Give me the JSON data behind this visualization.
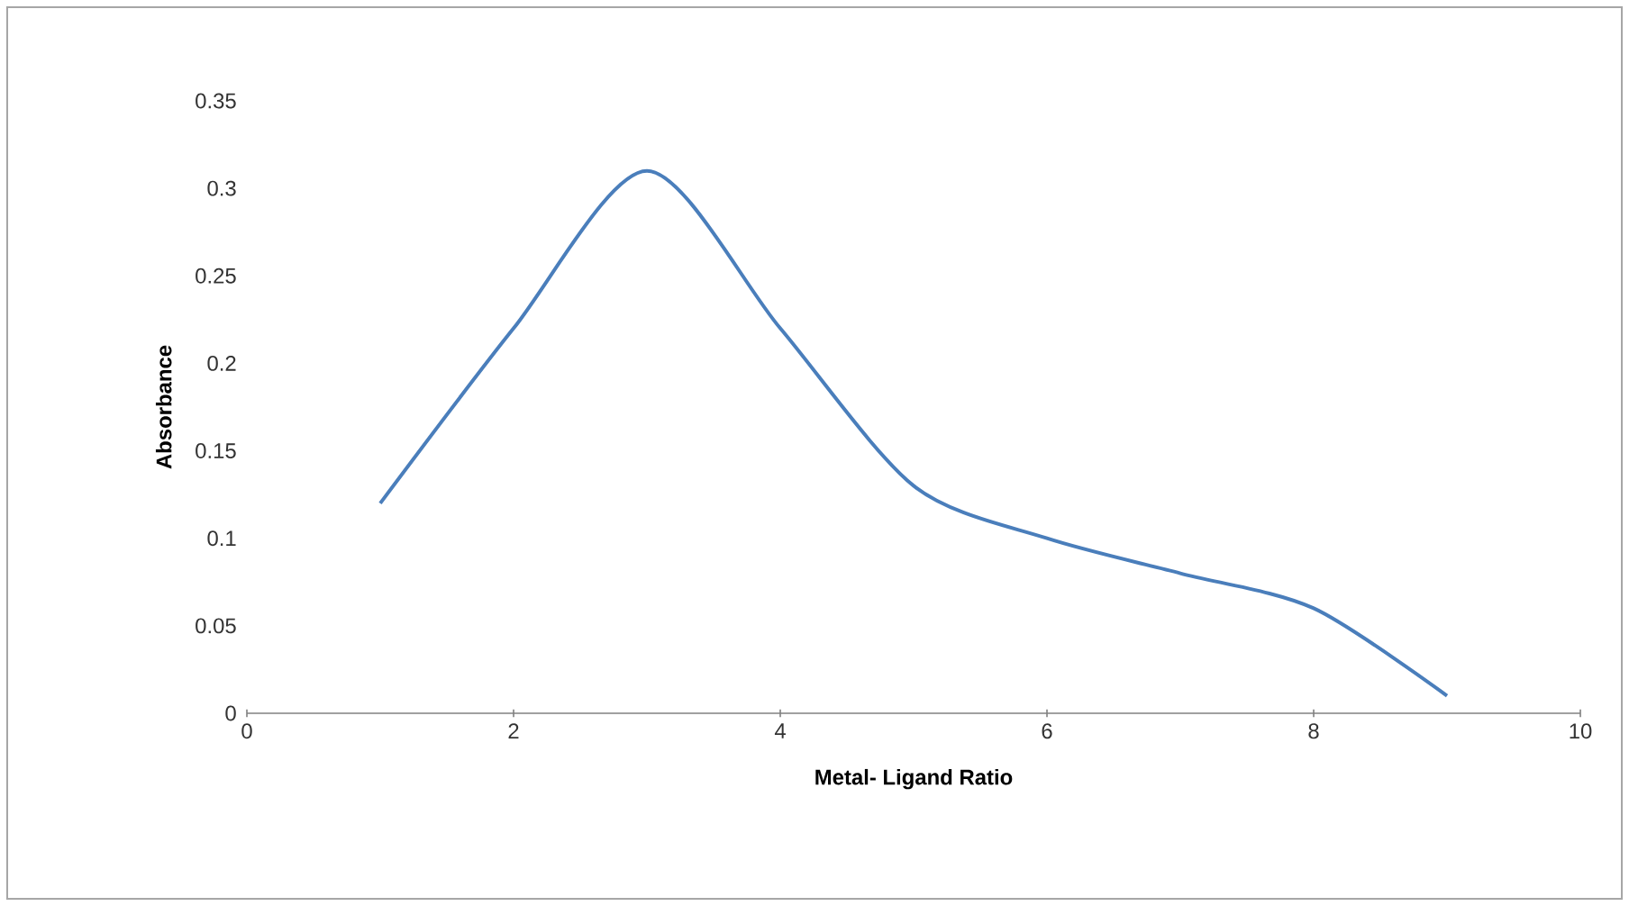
{
  "chart_data": {
    "type": "line",
    "xlabel": "Metal- Ligand Ratio",
    "ylabel": "Absorbance",
    "x": [
      1,
      2,
      3,
      4,
      5,
      6,
      7,
      8,
      9
    ],
    "series": [
      {
        "color": "#4a7ebb",
        "values": [
          0.12,
          0.22,
          0.31,
          0.22,
          0.13,
          0.1,
          0.08,
          0.06,
          0.01
        ]
      }
    ],
    "xlim": [
      0,
      10
    ],
    "xticks": [
      0,
      2,
      4,
      6,
      8,
      10
    ],
    "ylim": [
      0,
      0.35
    ],
    "yticks": [
      0,
      0.05,
      0.1,
      0.15,
      0.2,
      0.25,
      0.3,
      0.35
    ],
    "grid": false
  }
}
